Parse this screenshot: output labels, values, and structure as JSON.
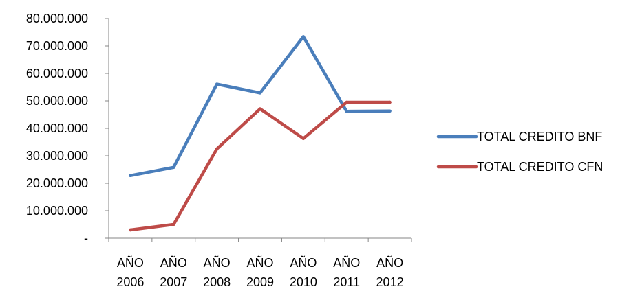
{
  "chart_data": {
    "type": "line",
    "title": "",
    "xlabel": "",
    "ylabel": "",
    "categories": [
      [
        "AÑO",
        "2006"
      ],
      [
        "AÑO",
        "2007"
      ],
      [
        "AÑO",
        "2008"
      ],
      [
        "AÑO",
        "2009"
      ],
      [
        "AÑO",
        "2010"
      ],
      [
        "AÑO",
        "2011"
      ],
      [
        "AÑO",
        "2012"
      ]
    ],
    "ylim": [
      0,
      80000000
    ],
    "yticks": [
      {
        "value": 0,
        "label": "-"
      },
      {
        "value": 10000000,
        "label": "10.000.000"
      },
      {
        "value": 20000000,
        "label": "20.000.000"
      },
      {
        "value": 30000000,
        "label": "30.000.000"
      },
      {
        "value": 40000000,
        "label": "40.000.000"
      },
      {
        "value": 50000000,
        "label": "50.000.000"
      },
      {
        "value": 60000000,
        "label": "60.000.000"
      },
      {
        "value": 70000000,
        "label": "70.000.000"
      },
      {
        "value": 80000000,
        "label": "80.000.000"
      }
    ],
    "grid": false,
    "legend_position": "right",
    "series": [
      {
        "name": "TOTAL CREDITO BNF",
        "color": "#4A7EBB",
        "values": [
          22800000,
          25800000,
          56100000,
          52900000,
          73400000,
          46200000,
          46300000
        ]
      },
      {
        "name": "TOTAL CREDITO CFN",
        "color": "#BE4B48",
        "values": [
          3000000,
          5000000,
          32500000,
          47100000,
          36300000,
          49500000,
          49500000
        ]
      }
    ]
  }
}
